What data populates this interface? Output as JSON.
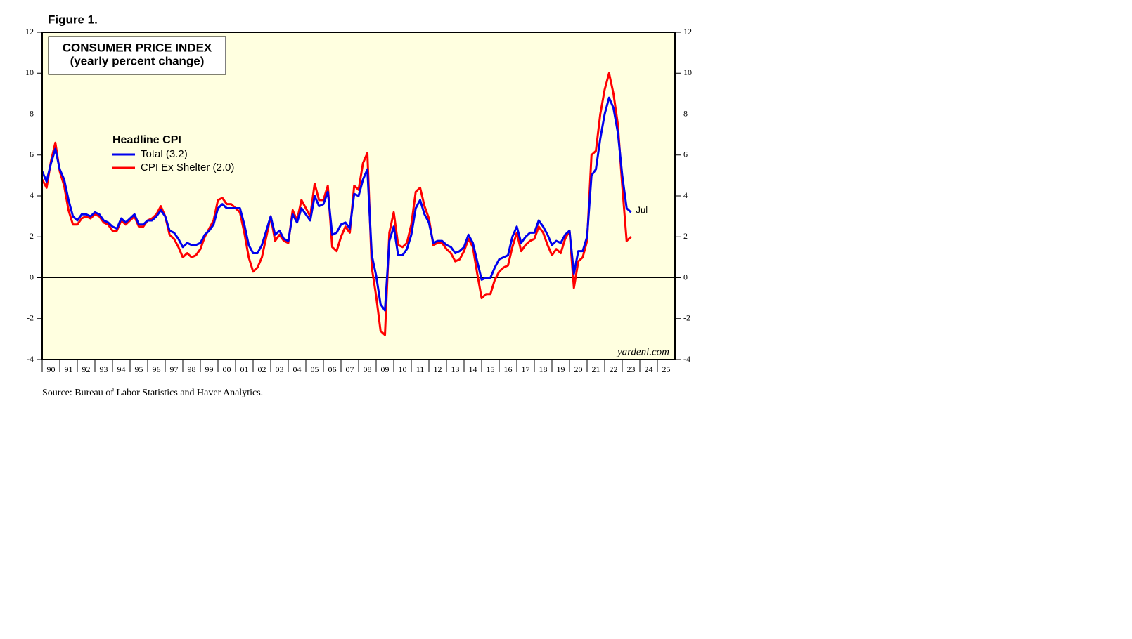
{
  "chart_data": {
    "type": "line",
    "figure_label": "Figure 1.",
    "title": "CONSUMER PRICE INDEX",
    "subtitle": "(yearly percent change)",
    "legend_title": "Headline CPI",
    "annotation": "Jul",
    "watermark": "yardeni.com",
    "source": "Source: Bureau of Labor Statistics and Haver Analytics.",
    "x": [
      1990,
      1990.25,
      1990.5,
      1990.75,
      1991,
      1991.25,
      1991.5,
      1991.75,
      1992,
      1992.25,
      1992.5,
      1992.75,
      1993,
      1993.25,
      1993.5,
      1993.75,
      1994,
      1994.25,
      1994.5,
      1994.75,
      1995,
      1995.25,
      1995.5,
      1995.75,
      1996,
      1996.25,
      1996.5,
      1996.75,
      1997,
      1997.25,
      1997.5,
      1997.75,
      1998,
      1998.25,
      1998.5,
      1998.75,
      1999,
      1999.25,
      1999.5,
      1999.75,
      2000,
      2000.25,
      2000.5,
      2000.75,
      2001,
      2001.25,
      2001.5,
      2001.75,
      2002,
      2002.25,
      2002.5,
      2002.75,
      2003,
      2003.25,
      2003.5,
      2003.75,
      2004,
      2004.25,
      2004.5,
      2004.75,
      2005,
      2005.25,
      2005.5,
      2005.75,
      2006,
      2006.25,
      2006.5,
      2006.75,
      2007,
      2007.25,
      2007.5,
      2007.75,
      2008,
      2008.25,
      2008.5,
      2008.75,
      2009,
      2009.25,
      2009.5,
      2009.75,
      2010,
      2010.25,
      2010.5,
      2010.75,
      2011,
      2011.25,
      2011.5,
      2011.75,
      2012,
      2012.25,
      2012.5,
      2012.75,
      2013,
      2013.25,
      2013.5,
      2013.75,
      2014,
      2014.25,
      2014.5,
      2014.75,
      2015,
      2015.25,
      2015.5,
      2015.75,
      2016,
      2016.25,
      2016.5,
      2016.75,
      2017,
      2017.25,
      2017.5,
      2017.75,
      2018,
      2018.25,
      2018.5,
      2018.75,
      2019,
      2019.25,
      2019.5,
      2019.75,
      2020,
      2020.25,
      2020.5,
      2020.75,
      2021,
      2021.25,
      2021.5,
      2021.75,
      2022,
      2022.25,
      2022.5,
      2022.75,
      2023,
      2023.25,
      2023.5
    ],
    "series": [
      {
        "name": "Total (3.2)",
        "color": "#0000ee",
        "values": [
          5.2,
          4.7,
          5.6,
          6.3,
          5.3,
          4.8,
          3.8,
          3.0,
          2.8,
          3.1,
          3.1,
          3.0,
          3.2,
          3.1,
          2.8,
          2.7,
          2.5,
          2.4,
          2.9,
          2.7,
          2.9,
          3.1,
          2.6,
          2.6,
          2.8,
          2.8,
          3.0,
          3.3,
          3.0,
          2.3,
          2.2,
          1.9,
          1.5,
          1.7,
          1.6,
          1.6,
          1.7,
          2.1,
          2.3,
          2.6,
          3.4,
          3.6,
          3.4,
          3.4,
          3.4,
          3.4,
          2.6,
          1.6,
          1.2,
          1.2,
          1.6,
          2.3,
          3.0,
          2.1,
          2.3,
          1.9,
          1.8,
          3.1,
          2.7,
          3.4,
          3.1,
          2.8,
          4.0,
          3.5,
          3.6,
          4.2,
          2.1,
          2.2,
          2.6,
          2.7,
          2.4,
          4.1,
          4.0,
          4.8,
          5.3,
          1.1,
          0.1,
          -1.3,
          -1.6,
          1.8,
          2.5,
          1.1,
          1.1,
          1.4,
          2.1,
          3.4,
          3.8,
          3.1,
          2.7,
          1.7,
          1.8,
          1.8,
          1.6,
          1.5,
          1.2,
          1.3,
          1.5,
          2.1,
          1.7,
          0.8,
          -0.1,
          0.0,
          0.0,
          0.5,
          0.9,
          1.0,
          1.1,
          2.0,
          2.5,
          1.7,
          2.0,
          2.2,
          2.2,
          2.8,
          2.5,
          2.1,
          1.6,
          1.8,
          1.7,
          2.1,
          2.3,
          0.2,
          1.3,
          1.3,
          2.0,
          5.0,
          5.3,
          6.8,
          8.0,
          8.8,
          8.3,
          7.1,
          5.0,
          3.4,
          3.2
        ]
      },
      {
        "name": "CPI Ex Shelter (2.0)",
        "color": "#ff0000",
        "values": [
          4.8,
          4.4,
          5.7,
          6.6,
          5.2,
          4.5,
          3.3,
          2.6,
          2.6,
          2.9,
          3.0,
          2.9,
          3.1,
          3.0,
          2.7,
          2.6,
          2.3,
          2.3,
          2.8,
          2.6,
          2.8,
          3.0,
          2.5,
          2.5,
          2.8,
          2.9,
          3.1,
          3.5,
          3.0,
          2.1,
          1.9,
          1.5,
          1.0,
          1.2,
          1.0,
          1.1,
          1.4,
          2.0,
          2.4,
          2.8,
          3.8,
          3.9,
          3.6,
          3.6,
          3.4,
          3.2,
          2.2,
          1.0,
          0.3,
          0.5,
          1.0,
          2.0,
          3.0,
          1.8,
          2.1,
          1.8,
          1.7,
          3.3,
          2.8,
          3.8,
          3.4,
          3.0,
          4.6,
          3.8,
          3.8,
          4.5,
          1.5,
          1.3,
          2.0,
          2.5,
          2.2,
          4.5,
          4.3,
          5.6,
          6.1,
          0.5,
          -0.9,
          -2.6,
          -2.8,
          2.2,
          3.2,
          1.6,
          1.5,
          1.7,
          2.6,
          4.2,
          4.4,
          3.5,
          2.9,
          1.6,
          1.7,
          1.7,
          1.4,
          1.2,
          0.8,
          0.9,
          1.3,
          1.9,
          1.5,
          0.2,
          -1.0,
          -0.8,
          -0.8,
          -0.1,
          0.3,
          0.5,
          0.6,
          1.5,
          2.2,
          1.3,
          1.6,
          1.8,
          1.9,
          2.5,
          2.2,
          1.6,
          1.1,
          1.4,
          1.2,
          1.9,
          2.3,
          -0.5,
          0.8,
          1.0,
          1.8,
          6.0,
          6.2,
          8.0,
          9.2,
          10.0,
          9.0,
          7.5,
          4.5,
          1.8,
          2.0
        ]
      }
    ],
    "xlim": [
      1990,
      2026
    ],
    "xticks": [
      {
        "value": 1990,
        "label": "90"
      },
      {
        "value": 1991,
        "label": "91"
      },
      {
        "value": 1992,
        "label": "92"
      },
      {
        "value": 1993,
        "label": "93"
      },
      {
        "value": 1994,
        "label": "94"
      },
      {
        "value": 1995,
        "label": "95"
      },
      {
        "value": 1996,
        "label": "96"
      },
      {
        "value": 1997,
        "label": "97"
      },
      {
        "value": 1998,
        "label": "98"
      },
      {
        "value": 1999,
        "label": "99"
      },
      {
        "value": 2000,
        "label": "00"
      },
      {
        "value": 2001,
        "label": "01"
      },
      {
        "value": 2002,
        "label": "02"
      },
      {
        "value": 2003,
        "label": "03"
      },
      {
        "value": 2004,
        "label": "04"
      },
      {
        "value": 2005,
        "label": "05"
      },
      {
        "value": 2006,
        "label": "06"
      },
      {
        "value": 2007,
        "label": "07"
      },
      {
        "value": 2008,
        "label": "08"
      },
      {
        "value": 2009,
        "label": "09"
      },
      {
        "value": 2010,
        "label": "10"
      },
      {
        "value": 2011,
        "label": "11"
      },
      {
        "value": 2012,
        "label": "12"
      },
      {
        "value": 2013,
        "label": "13"
      },
      {
        "value": 2014,
        "label": "14"
      },
      {
        "value": 2015,
        "label": "15"
      },
      {
        "value": 2016,
        "label": "16"
      },
      {
        "value": 2017,
        "label": "17"
      },
      {
        "value": 2018,
        "label": "18"
      },
      {
        "value": 2019,
        "label": "19"
      },
      {
        "value": 2020,
        "label": "20"
      },
      {
        "value": 2021,
        "label": "21"
      },
      {
        "value": 2022,
        "label": "22"
      },
      {
        "value": 2023,
        "label": "23"
      },
      {
        "value": 2024,
        "label": "24"
      },
      {
        "value": 2025,
        "label": "25"
      }
    ],
    "ylim": [
      -4,
      12
    ],
    "yticks": [
      -4,
      -2,
      0,
      2,
      4,
      6,
      8,
      10,
      12
    ],
    "y2lim": [
      -4,
      12
    ],
    "y2ticks": [
      -4,
      -2,
      0,
      2,
      4,
      6,
      8,
      10,
      12
    ],
    "background": "#ffffe0"
  }
}
